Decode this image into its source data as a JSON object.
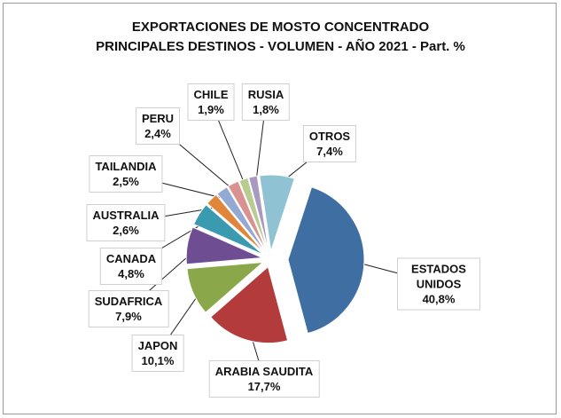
{
  "chart_data": {
    "type": "pie",
    "title": "EXPORTACIONES DE MOSTO CONCENTRADO",
    "subtitle": "PRINCIPALES DESTINOS - VOLUMEN - AÑO 2021 - Part. %",
    "categories": [
      "ESTADOS UNIDOS",
      "ARABIA SAUDITA",
      "JAPON",
      "SUDAFRICA",
      "CANADA",
      "AUSTRALIA",
      "TAILANDIA",
      "PERU",
      "CHILE",
      "RUSIA",
      "OTROS"
    ],
    "values": [
      40.8,
      17.7,
      10.1,
      7.9,
      4.8,
      2.6,
      2.5,
      2.4,
      1.9,
      1.8,
      7.4
    ],
    "value_labels": [
      "40,8%",
      "17,7%",
      "10,1%",
      "7,9%",
      "4,8%",
      "2,6%",
      "2,5%",
      "2,4%",
      "1,9%",
      "1,8%",
      "7,4%"
    ],
    "colors": [
      "#3f6ea3",
      "#b33b3b",
      "#8aa84a",
      "#6e4d93",
      "#3a9ab0",
      "#e0853a",
      "#94a9d1",
      "#d9928f",
      "#b8cc8f",
      "#a899c0",
      "#8fc3d4"
    ]
  }
}
